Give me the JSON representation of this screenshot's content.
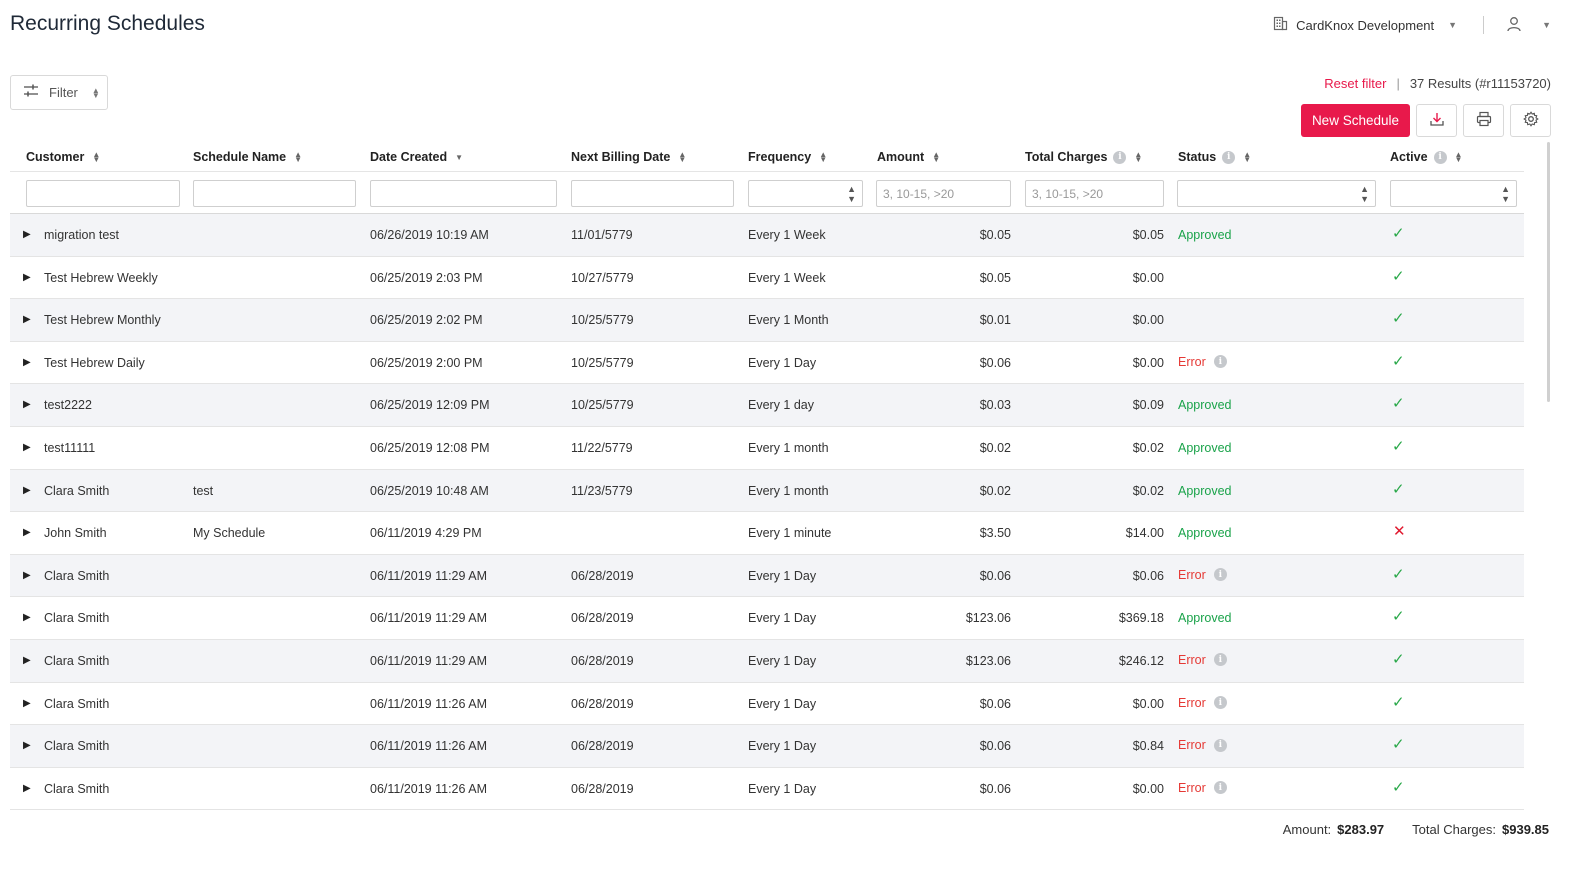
{
  "page": {
    "title": "Recurring Schedules"
  },
  "topbar": {
    "org_name": "CardKnox Development"
  },
  "toolbar": {
    "filter_label": "Filter",
    "reset_filter": "Reset filter",
    "results_text": "37 Results (#r11153720)",
    "new_schedule_label": "New Schedule"
  },
  "columns": [
    {
      "key": "customer",
      "label": "Customer",
      "info": false
    },
    {
      "key": "schedule_name",
      "label": "Schedule Name",
      "info": false
    },
    {
      "key": "date_created",
      "label": "Date Created",
      "info": false
    },
    {
      "key": "next_billing",
      "label": "Next Billing Date",
      "info": false
    },
    {
      "key": "frequency",
      "label": "Frequency",
      "info": false
    },
    {
      "key": "amount",
      "label": "Amount",
      "info": false
    },
    {
      "key": "total_charges",
      "label": "Total Charges",
      "info": true
    },
    {
      "key": "status",
      "label": "Status",
      "info": true
    },
    {
      "key": "active",
      "label": "Active",
      "info": true
    }
  ],
  "filters": {
    "amount_placeholder": "3, 10-15, >20",
    "total_charges_placeholder": "3, 10-15, >20"
  },
  "rows": [
    {
      "customer": "migration test",
      "schedule_name": "",
      "date_created": "06/26/2019 10:19 AM",
      "next_billing": "11/01/5779",
      "frequency": "Every 1 Week",
      "amount": "$0.05",
      "total_charges": "$0.05",
      "status": "Approved",
      "active": true
    },
    {
      "customer": "Test Hebrew Weekly",
      "schedule_name": "",
      "date_created": "06/25/2019 2:03 PM",
      "next_billing": "10/27/5779",
      "frequency": "Every 1 Week",
      "amount": "$0.05",
      "total_charges": "$0.00",
      "status": "",
      "active": true
    },
    {
      "customer": "Test Hebrew Monthly",
      "schedule_name": "",
      "date_created": "06/25/2019 2:02 PM",
      "next_billing": "10/25/5779",
      "frequency": "Every 1 Month",
      "amount": "$0.01",
      "total_charges": "$0.00",
      "status": "",
      "active": true
    },
    {
      "customer": "Test Hebrew Daily",
      "schedule_name": "",
      "date_created": "06/25/2019 2:00 PM",
      "next_billing": "10/25/5779",
      "frequency": "Every 1 Day",
      "amount": "$0.06",
      "total_charges": "$0.00",
      "status": "Error",
      "active": true
    },
    {
      "customer": "test2222",
      "schedule_name": "",
      "date_created": "06/25/2019 12:09 PM",
      "next_billing": "10/25/5779",
      "frequency": "Every 1 day",
      "amount": "$0.03",
      "total_charges": "$0.09",
      "status": "Approved",
      "active": true
    },
    {
      "customer": "test11111",
      "schedule_name": "",
      "date_created": "06/25/2019 12:08 PM",
      "next_billing": "11/22/5779",
      "frequency": "Every 1 month",
      "amount": "$0.02",
      "total_charges": "$0.02",
      "status": "Approved",
      "active": true
    },
    {
      "customer": "Clara Smith",
      "schedule_name": "test",
      "date_created": "06/25/2019 10:48 AM",
      "next_billing": "11/23/5779",
      "frequency": "Every 1 month",
      "amount": "$0.02",
      "total_charges": "$0.02",
      "status": "Approved",
      "active": true
    },
    {
      "customer": "John Smith",
      "schedule_name": "My Schedule",
      "date_created": "06/11/2019 4:29 PM",
      "next_billing": "",
      "frequency": "Every 1 minute",
      "amount": "$3.50",
      "total_charges": "$14.00",
      "status": "Approved",
      "active": false
    },
    {
      "customer": "Clara Smith",
      "schedule_name": "",
      "date_created": "06/11/2019 11:29 AM",
      "next_billing": "06/28/2019",
      "frequency": "Every 1 Day",
      "amount": "$0.06",
      "total_charges": "$0.06",
      "status": "Error",
      "active": true
    },
    {
      "customer": "Clara Smith",
      "schedule_name": "",
      "date_created": "06/11/2019 11:29 AM",
      "next_billing": "06/28/2019",
      "frequency": "Every 1 Day",
      "amount": "$123.06",
      "total_charges": "$369.18",
      "status": "Approved",
      "active": true
    },
    {
      "customer": "Clara Smith",
      "schedule_name": "",
      "date_created": "06/11/2019 11:29 AM",
      "next_billing": "06/28/2019",
      "frequency": "Every 1 Day",
      "amount": "$123.06",
      "total_charges": "$246.12",
      "status": "Error",
      "active": true
    },
    {
      "customer": "Clara Smith",
      "schedule_name": "",
      "date_created": "06/11/2019 11:26 AM",
      "next_billing": "06/28/2019",
      "frequency": "Every 1 Day",
      "amount": "$0.06",
      "total_charges": "$0.00",
      "status": "Error",
      "active": true
    },
    {
      "customer": "Clara Smith",
      "schedule_name": "",
      "date_created": "06/11/2019 11:26 AM",
      "next_billing": "06/28/2019",
      "frequency": "Every 1 Day",
      "amount": "$0.06",
      "total_charges": "$0.84",
      "status": "Error",
      "active": true
    },
    {
      "customer": "Clara Smith",
      "schedule_name": "",
      "date_created": "06/11/2019 11:26 AM",
      "next_billing": "06/28/2019",
      "frequency": "Every 1 Day",
      "amount": "$0.06",
      "total_charges": "$0.00",
      "status": "Error",
      "active": true
    }
  ],
  "footer": {
    "amount_label": "Amount:",
    "amount_value": "$283.97",
    "total_label": "Total Charges:",
    "total_value": "$939.85"
  },
  "colors": {
    "accent": "#e8194b",
    "approved": "#1aa34a",
    "error": "#e53935",
    "check": "#2aa84a",
    "cross": "#e0192f",
    "row_alt": "#f3f4f7"
  }
}
